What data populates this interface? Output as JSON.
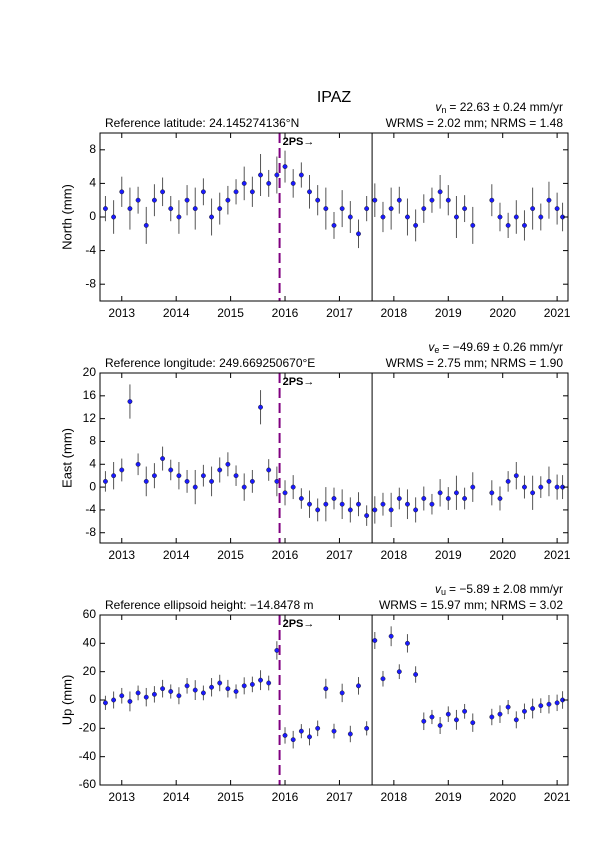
{
  "title": "IPAZ",
  "chart_data": [
    {
      "type": "scatter",
      "ylabel": "North (mm)",
      "reference": "Reference latitude: 24.145274136°N",
      "velocity": {
        "symbol": "v",
        "subscript": "n",
        "value": "= 22.63 ± 0.24 mm/yr"
      },
      "stats": "WRMS = 2.02 mm; NRMS = 1.48",
      "x": [
        2012.7,
        2012.85,
        2013.0,
        2013.15,
        2013.3,
        2013.45,
        2013.6,
        2013.75,
        2013.9,
        2014.05,
        2014.2,
        2014.35,
        2014.5,
        2014.65,
        2014.8,
        2014.95,
        2015.1,
        2015.25,
        2015.4,
        2015.55,
        2015.7,
        2015.85,
        2016.0,
        2016.15,
        2016.3,
        2016.45,
        2016.6,
        2016.75,
        2016.9,
        2017.05,
        2017.2,
        2017.35,
        2017.5,
        2017.65,
        2017.8,
        2017.95,
        2018.1,
        2018.25,
        2018.4,
        2018.55,
        2018.7,
        2018.85,
        2019.0,
        2019.15,
        2019.3,
        2019.45,
        2019.8,
        2019.95,
        2020.1,
        2020.25,
        2020.4,
        2020.55,
        2020.7,
        2020.85,
        2021.0,
        2021.1
      ],
      "values": [
        1,
        0,
        3,
        1,
        2,
        -1,
        2,
        3,
        1,
        0,
        2,
        1,
        3,
        0,
        1,
        2,
        3,
        4,
        3,
        5,
        4,
        5,
        6,
        4,
        5,
        3,
        2,
        1,
        -1,
        1,
        0,
        -2,
        1,
        2,
        0,
        1,
        2,
        0,
        -1,
        1,
        2,
        3,
        2,
        0,
        1,
        -1,
        2,
        0,
        -1,
        0,
        -1,
        1,
        0,
        2,
        1,
        0
      ],
      "yerr": [
        1.5,
        2.0,
        1.8,
        2.5,
        1.6,
        2.2,
        1.9,
        1.7,
        1.5,
        2.0,
        1.8,
        2.5,
        1.6,
        2.2,
        1.9,
        1.7,
        1.5,
        2.0,
        1.8,
        2.5,
        1.6,
        2.2,
        1.9,
        1.7,
        1.5,
        2.0,
        1.8,
        2.5,
        1.6,
        2.2,
        1.9,
        1.7,
        1.5,
        2.0,
        1.8,
        2.5,
        1.6,
        2.2,
        1.9,
        1.7,
        1.5,
        2.0,
        1.8,
        2.5,
        1.6,
        2.2,
        1.9,
        1.7,
        1.5,
        2.0,
        1.8,
        2.5,
        1.6,
        2.2,
        1.9,
        1.7
      ],
      "color": "#1a1aff",
      "errcolor": "#555555",
      "xlim": [
        2012.6,
        2021.2
      ],
      "xticks": [
        2013,
        2014,
        2015,
        2016,
        2017,
        2018,
        2019,
        2020,
        2021
      ],
      "ylim": [
        -10,
        10
      ],
      "yticks": [
        -8,
        -4,
        0,
        4,
        8
      ],
      "events": [
        {
          "x": 2015.9,
          "label": "2PS→",
          "color": "#800080",
          "style": "dashed"
        },
        {
          "x": 2017.6,
          "color": "#000000",
          "style": "solid"
        }
      ]
    },
    {
      "type": "scatter",
      "ylabel": "East (mm)",
      "reference": "Reference longitude: 249.669250670°E",
      "velocity": {
        "symbol": "v",
        "subscript": "e",
        "value": "= −49.69 ± 0.26 mm/yr"
      },
      "stats": "WRMS = 2.75 mm; NRMS = 1.90",
      "x": [
        2012.7,
        2012.85,
        2013.0,
        2013.15,
        2013.3,
        2013.45,
        2013.6,
        2013.75,
        2013.9,
        2014.05,
        2014.2,
        2014.35,
        2014.5,
        2014.65,
        2014.8,
        2014.95,
        2015.1,
        2015.25,
        2015.4,
        2015.55,
        2015.7,
        2015.85,
        2016.0,
        2016.15,
        2016.3,
        2016.45,
        2016.6,
        2016.75,
        2016.9,
        2017.05,
        2017.2,
        2017.35,
        2017.5,
        2017.65,
        2017.8,
        2017.95,
        2018.1,
        2018.25,
        2018.4,
        2018.55,
        2018.7,
        2018.85,
        2019.0,
        2019.15,
        2019.3,
        2019.45,
        2019.8,
        2019.95,
        2020.1,
        2020.25,
        2020.4,
        2020.55,
        2020.7,
        2020.85,
        2021.0,
        2021.1
      ],
      "values": [
        1,
        2,
        3,
        15,
        4,
        1,
        2,
        5,
        3,
        2,
        1,
        0,
        2,
        1,
        3,
        4,
        2,
        0,
        1,
        14,
        3,
        1,
        -1,
        0,
        -2,
        -3,
        -4,
        -3,
        -2,
        -3,
        -4,
        -3,
        -5,
        -4,
        -3,
        -4,
        -2,
        -3,
        -4,
        -2,
        -3,
        -1,
        -2,
        -1,
        -2,
        0,
        -1,
        -2,
        1,
        2,
        0,
        -1,
        0,
        1,
        0,
        0
      ],
      "yerr": [
        1.8,
        2.4,
        2.0,
        3.0,
        1.9,
        2.6,
        2.2,
        2.1,
        1.8,
        2.4,
        2.0,
        3.0,
        1.9,
        2.6,
        2.2,
        2.1,
        1.8,
        2.4,
        2.0,
        3.0,
        1.9,
        2.6,
        2.2,
        2.1,
        1.8,
        2.4,
        2.0,
        3.0,
        1.9,
        2.6,
        2.2,
        2.1,
        1.8,
        2.4,
        2.0,
        3.0,
        1.9,
        2.6,
        2.2,
        2.1,
        1.8,
        2.4,
        2.0,
        3.0,
        1.9,
        2.6,
        2.2,
        2.1,
        1.8,
        2.4,
        2.0,
        3.0,
        1.9,
        2.6,
        2.2,
        2.1
      ],
      "color": "#1a1aff",
      "errcolor": "#555555",
      "xlim": [
        2012.6,
        2021.2
      ],
      "xticks": [
        2013,
        2014,
        2015,
        2016,
        2017,
        2018,
        2019,
        2020,
        2021
      ],
      "ylim": [
        -9.8,
        20
      ],
      "yticks": [
        -8,
        -4,
        0,
        4,
        8,
        12,
        16,
        20
      ],
      "events": [
        {
          "x": 2015.9,
          "label": "2PS→",
          "color": "#800080",
          "style": "dashed"
        },
        {
          "x": 2017.6,
          "color": "#000000",
          "style": "solid"
        }
      ]
    },
    {
      "type": "scatter",
      "ylabel": "Up (mm)",
      "reference": "Reference ellipsoid height: −14.8478 m",
      "velocity": {
        "symbol": "v",
        "subscript": "u",
        "value": "= −5.89 ± 2.08 mm/yr"
      },
      "stats": "WRMS = 15.97 mm; NRMS = 3.02",
      "x": [
        2012.7,
        2012.85,
        2013.0,
        2013.15,
        2013.3,
        2013.45,
        2013.6,
        2013.75,
        2013.9,
        2014.05,
        2014.2,
        2014.35,
        2014.5,
        2014.65,
        2014.8,
        2014.95,
        2015.1,
        2015.25,
        2015.4,
        2015.55,
        2015.7,
        2015.85,
        2016.0,
        2016.15,
        2016.3,
        2016.45,
        2016.6,
        2016.75,
        2016.9,
        2017.05,
        2017.2,
        2017.35,
        2017.5,
        2017.65,
        2017.8,
        2017.95,
        2018.1,
        2018.25,
        2018.4,
        2018.55,
        2018.7,
        2018.85,
        2019.0,
        2019.15,
        2019.3,
        2019.45,
        2019.8,
        2019.95,
        2020.1,
        2020.25,
        2020.4,
        2020.55,
        2020.7,
        2020.85,
        2021.0,
        2021.1
      ],
      "values": [
        -2,
        0,
        3,
        -1,
        5,
        2,
        4,
        8,
        6,
        3,
        10,
        7,
        5,
        9,
        12,
        8,
        6,
        10,
        11,
        14,
        12,
        35,
        -25,
        -28,
        -22,
        -26,
        -20,
        8,
        -22,
        5,
        -24,
        10,
        -20,
        42,
        15,
        45,
        20,
        40,
        18,
        -15,
        -12,
        -18,
        -10,
        -14,
        -8,
        -16,
        -12,
        -10,
        -5,
        -14,
        -8,
        -6,
        -4,
        -3,
        -2,
        0
      ],
      "yerr": [
        5,
        6,
        5.5,
        7,
        5.2,
        6.5,
        5.8,
        6.2,
        5,
        6,
        5.5,
        7,
        5.2,
        6.5,
        5.8,
        6.2,
        5,
        6,
        5.5,
        7,
        5.2,
        6.5,
        5.8,
        6.2,
        5,
        6,
        5.5,
        7,
        5.2,
        6.5,
        5.8,
        6.2,
        5,
        6,
        5.5,
        7,
        5.2,
        6.5,
        5.8,
        6.2,
        5,
        6,
        5.5,
        7,
        5.2,
        6.5,
        5.8,
        6.2,
        5,
        6,
        5.5,
        7,
        5.2,
        6.5,
        5.8,
        6.2
      ],
      "color": "#1a1aff",
      "errcolor": "#555555",
      "xlim": [
        2012.6,
        2021.2
      ],
      "xticks": [
        2013,
        2014,
        2015,
        2016,
        2017,
        2018,
        2019,
        2020,
        2021
      ],
      "ylim": [
        -60,
        60
      ],
      "yticks": [
        -60,
        -40,
        -20,
        0,
        20,
        40,
        60
      ],
      "events": [
        {
          "x": 2015.9,
          "label": "2PS→",
          "color": "#800080",
          "style": "dashed"
        },
        {
          "x": 2017.6,
          "color": "#000000",
          "style": "solid"
        }
      ]
    }
  ]
}
